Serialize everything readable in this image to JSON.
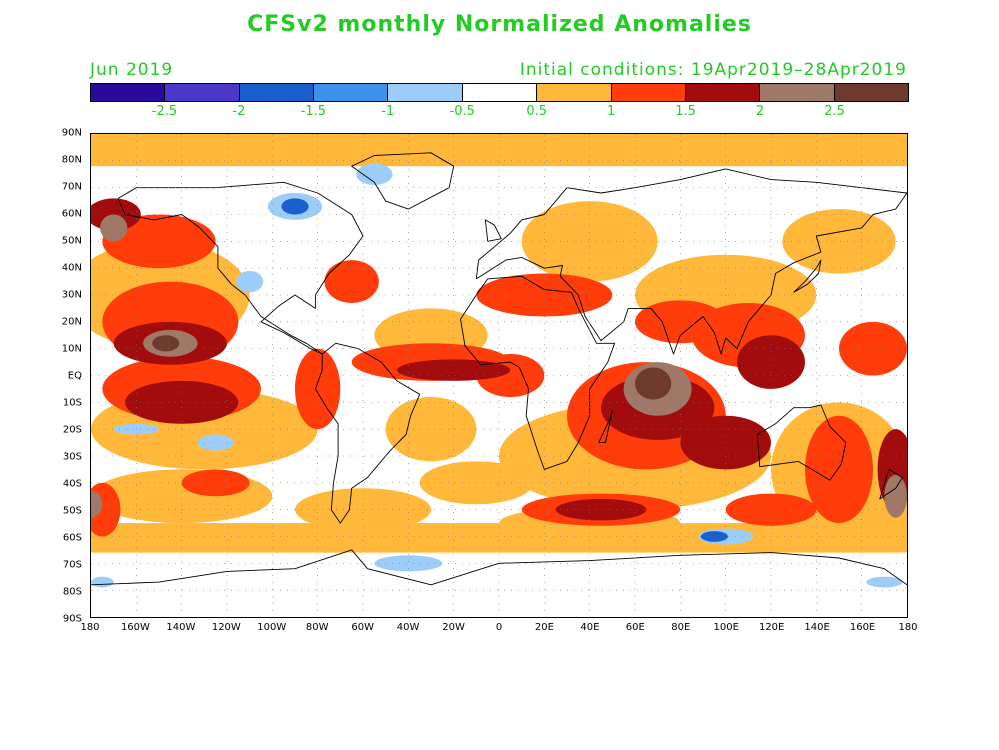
{
  "title": "CFSv2 monthly Normalized Anomalies",
  "forecast_month": "Jun 2019",
  "initial_conditions": "Initial conditions: 19Apr2019–28Apr2019",
  "colorbar": {
    "colors": [
      "#2a0a9c",
      "#4a37cc",
      "#1a5fd0",
      "#3a92ea",
      "#9ccdf8",
      "#ffffff",
      "#ffb83a",
      "#ff3c0a",
      "#a30c0c",
      "#a07868",
      "#6e3a2e"
    ],
    "labels": [
      "-2.5",
      "-2",
      "-1.5",
      "-1",
      "-0.5",
      "0.5",
      "1",
      "1.5",
      "2",
      "2.5"
    ]
  },
  "axes": {
    "lat_labels": [
      "90N",
      "80N",
      "70N",
      "60N",
      "50N",
      "40N",
      "30N",
      "20N",
      "10N",
      "EQ",
      "10S",
      "20S",
      "30S",
      "40S",
      "50S",
      "60S",
      "70S",
      "80S",
      "90S"
    ],
    "lon_labels": [
      "180",
      "160W",
      "140W",
      "120W",
      "100W",
      "80W",
      "60W",
      "40W",
      "20W",
      "0",
      "20E",
      "40E",
      "60E",
      "80E",
      "100E",
      "120E",
      "140E",
      "160E",
      "180"
    ]
  }
}
